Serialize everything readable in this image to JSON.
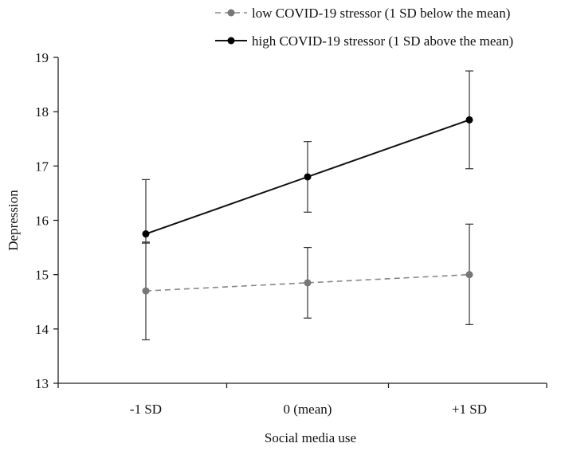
{
  "chart_data": {
    "type": "line",
    "title": "",
    "xlabel": "Social media use",
    "ylabel": "Depression",
    "categories": [
      "-1 SD",
      "0 (mean)",
      "+1 SD"
    ],
    "ylim": [
      13,
      19
    ],
    "yticks": [
      13,
      14,
      15,
      16,
      17,
      18,
      19
    ],
    "grid": false,
    "legend_position": "top-right",
    "series": [
      {
        "name": "low COVID-19 stressor (1 SD below the mean)",
        "values": [
          14.7,
          14.85,
          15.0
        ],
        "error_low": [
          13.8,
          14.2,
          14.08
        ],
        "error_high": [
          15.6,
          15.5,
          15.93
        ],
        "color": "#888888",
        "line_style": "dashed",
        "marker_color": "#777777"
      },
      {
        "name": "high COVID-19 stressor (1 SD above the mean)",
        "values": [
          15.75,
          16.8,
          17.85
        ],
        "error_low": [
          15.58,
          16.15,
          16.95
        ],
        "error_high": [
          16.75,
          17.45,
          18.75
        ],
        "color": "#111111",
        "line_style": "solid",
        "marker_color": "#000000"
      }
    ]
  }
}
